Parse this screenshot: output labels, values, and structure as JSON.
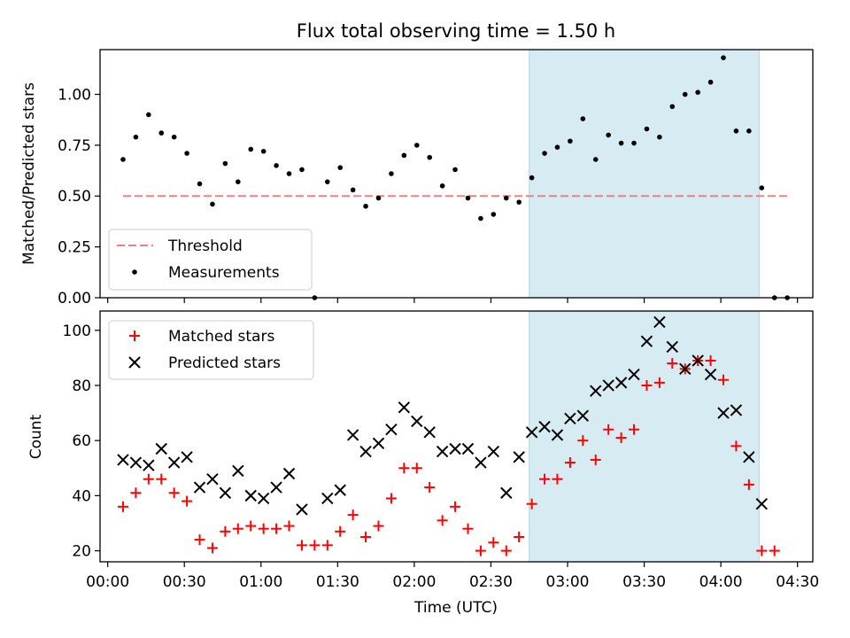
{
  "title": "Flux total observing time = 1.50 h",
  "colors": {
    "threshold": "#f08080",
    "measurement": "#000000",
    "matched": "#ff0000",
    "predicted": "#000000",
    "highlight": "#add8e6"
  },
  "chart_data": [
    {
      "type": "scatter",
      "ylabel": "Matched/Predicted stars",
      "ylim": [
        0,
        1.22
      ],
      "yticks": [
        "0.00",
        "0.25",
        "0.50",
        "0.75",
        "1.00"
      ],
      "legend_position": "lower-left",
      "highlight_span_min": [
        165,
        255
      ],
      "threshold": {
        "name": "Threshold",
        "y": 0.5,
        "x_range_min": [
          6,
          267
        ]
      },
      "series": [
        {
          "name": "Measurements",
          "x_min": [
            6,
            11,
            16,
            21,
            26,
            31,
            36,
            41,
            46,
            51,
            56,
            61,
            66,
            71,
            76,
            81,
            86,
            91,
            96,
            101,
            106,
            111,
            116,
            121,
            126,
            131,
            136,
            141,
            146,
            151,
            156,
            161,
            166,
            171,
            176,
            181,
            186,
            191,
            196,
            201,
            206,
            211,
            216,
            221,
            226,
            231,
            236,
            241,
            246,
            251,
            256,
            261,
            266
          ],
          "y": [
            0.68,
            0.79,
            0.9,
            0.81,
            0.79,
            0.71,
            0.56,
            0.46,
            0.66,
            0.57,
            0.73,
            0.72,
            0.65,
            0.61,
            0.63,
            0.0,
            0.57,
            0.64,
            0.53,
            0.45,
            0.49,
            0.61,
            0.7,
            0.75,
            0.69,
            0.55,
            0.63,
            0.49,
            0.39,
            0.41,
            0.49,
            0.47,
            0.59,
            0.71,
            0.74,
            0.77,
            0.88,
            0.68,
            0.8,
            0.76,
            0.76,
            0.83,
            0.79,
            0.94,
            1.0,
            1.01,
            1.06,
            1.18,
            0.82,
            0.82,
            0.54,
            0.0,
            0.0
          ]
        }
      ]
    },
    {
      "type": "scatter",
      "xlabel": "Time (UTC)",
      "ylabel": "Count",
      "ylim": [
        16,
        107
      ],
      "yticks": [
        "20",
        "40",
        "60",
        "80",
        "100"
      ],
      "xlim_min": [
        -3,
        276
      ],
      "xticks": [
        "00:00",
        "00:30",
        "01:00",
        "01:30",
        "02:00",
        "02:30",
        "03:00",
        "03:30",
        "04:00",
        "04:30"
      ],
      "legend_position": "upper-left",
      "highlight_span_min": [
        165,
        255
      ],
      "series": [
        {
          "name": "Matched stars",
          "x_min": [
            6,
            11,
            16,
            21,
            26,
            31,
            36,
            41,
            46,
            51,
            56,
            61,
            66,
            71,
            76,
            81,
            86,
            91,
            96,
            101,
            106,
            111,
            116,
            121,
            126,
            131,
            136,
            141,
            146,
            151,
            156,
            161,
            166,
            171,
            176,
            181,
            186,
            191,
            196,
            201,
            206,
            211,
            216,
            221,
            226,
            231,
            236,
            241,
            246,
            251,
            256,
            261
          ],
          "y": [
            36,
            41,
            46,
            46,
            41,
            38,
            24,
            21,
            27,
            28,
            29,
            28,
            28,
            29,
            22,
            22,
            22,
            27,
            33,
            25,
            29,
            39,
            50,
            50,
            43,
            31,
            36,
            28,
            20,
            23,
            20,
            25,
            37,
            46,
            46,
            52,
            60,
            53,
            64,
            61,
            64,
            80,
            81,
            88,
            86,
            89,
            89,
            82,
            58,
            44,
            20,
            20
          ]
        },
        {
          "name": "Predicted stars",
          "x_min": [
            6,
            11,
            16,
            21,
            26,
            31,
            36,
            41,
            46,
            51,
            56,
            61,
            66,
            71,
            76,
            86,
            91,
            96,
            101,
            106,
            111,
            116,
            121,
            126,
            131,
            136,
            141,
            146,
            151,
            156,
            161,
            166,
            171,
            176,
            181,
            186,
            191,
            196,
            201,
            206,
            211,
            216,
            221,
            226,
            231,
            236,
            241,
            246,
            251,
            256
          ],
          "y": [
            53,
            52,
            51,
            57,
            52,
            54,
            43,
            46,
            41,
            49,
            40,
            39,
            43,
            48,
            35,
            39,
            42,
            62,
            56,
            59,
            64,
            72,
            67,
            63,
            56,
            57,
            57,
            52,
            56,
            41,
            54,
            63,
            65,
            62,
            68,
            69,
            78,
            80,
            81,
            84,
            96,
            103,
            94,
            86,
            89,
            84,
            70,
            71,
            54,
            37
          ]
        }
      ]
    }
  ]
}
